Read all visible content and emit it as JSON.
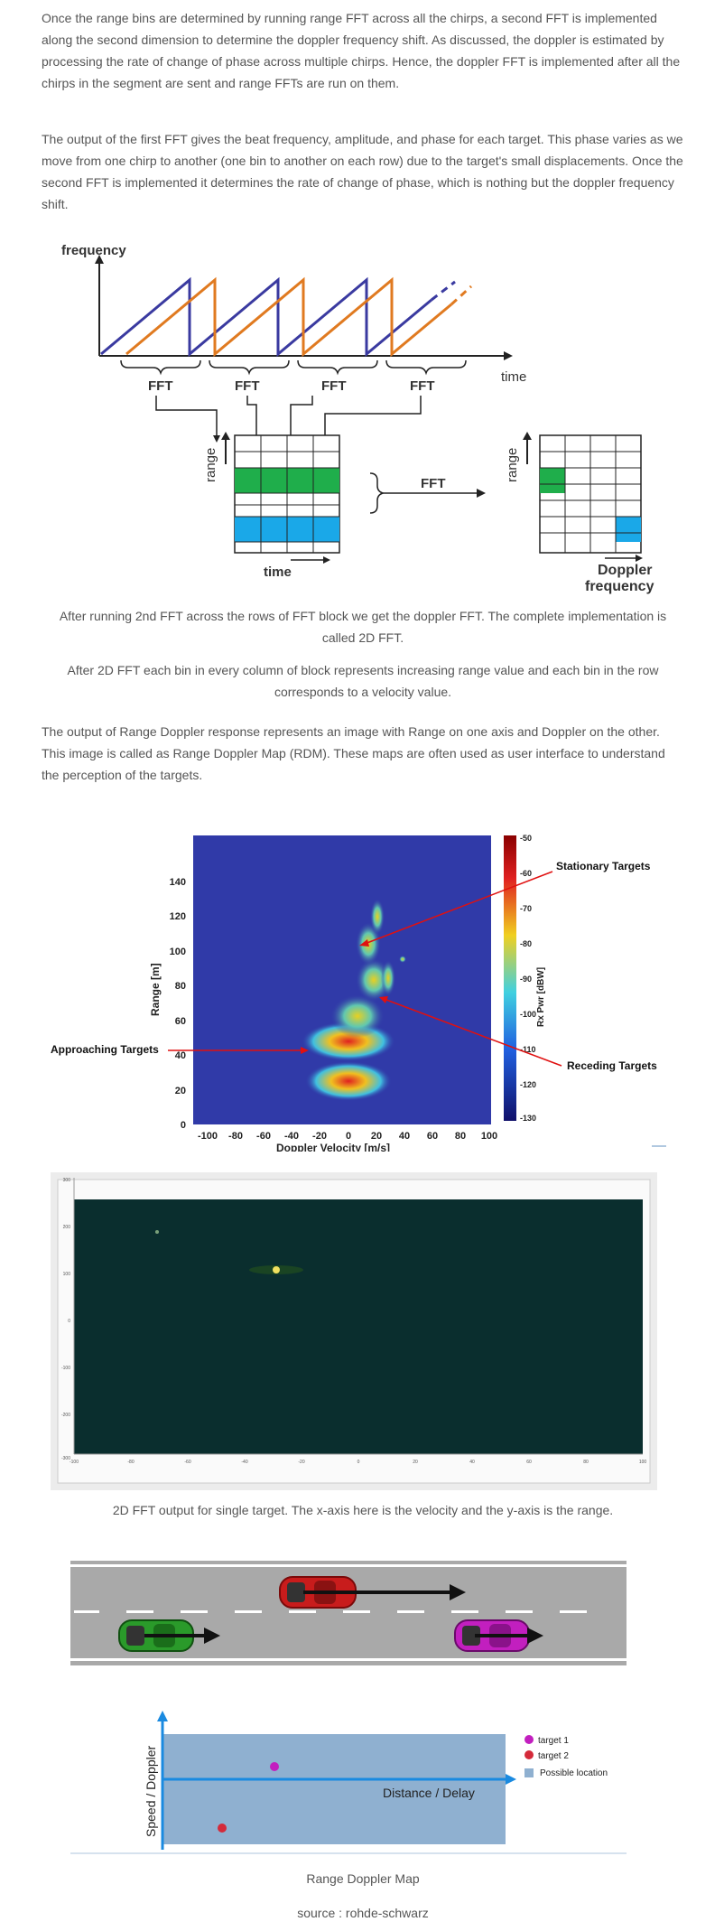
{
  "paragraphs": {
    "p1": "Once the range bins are determined by running range FFT across all the chirps, a second FFT is implemented along the second dimension to determine the doppler frequency shift. As discussed, the doppler is estimated by processing the rate of change of phase across multiple chirps. Hence, the doppler FFT is implemented after all the chirps in the segment are sent and range FFTs are run on them.",
    "p2": "The output of the first FFT gives the beat frequency, amplitude, and phase for each target. This phase varies as we move from one chirp to another (one bin to another on each row) due to the target's small displacements. Once the second FFT is implemented it determines the rate of change of phase, which is nothing but the doppler frequency shift.",
    "p3": "The output of Range Doppler response represents an image with Range on one axis and Doppler on the other. This image is called as Range Doppler Map (RDM). These maps are often used as user interface to understand the perception of the targets."
  },
  "captions": {
    "c1": "After running 2nd FFT across the rows of FFT block we get the doppler FFT. The complete implementation is called 2D FFT.",
    "c2": "After 2D FFT each bin in every column of block represents increasing range value and each bin in the row corresponds to a velocity value.",
    "c3": "2D FFT output for single target. The x-axis here is the velocity and the y-axis is the range.",
    "c4": "Range Doppler Map",
    "c5": "source : rohde-schwarz"
  },
  "fft_diagram": {
    "y_axis": "frequency",
    "x_axis": "time",
    "fft_labels": [
      "FFT",
      "FFT",
      "FFT",
      "FFT"
    ],
    "block_range_label": "range",
    "block_time_label": "time",
    "middle_fft": "FFT",
    "right_range_label": "range",
    "right_axis_label": [
      "Doppler",
      "frequency"
    ],
    "colors": {
      "chirp1": "#3a3aa0",
      "chirp2": "#e07a20",
      "green": "#1fae4b",
      "blue": "#1aa8e8"
    }
  },
  "rdm_chart": {
    "y_label": "Range [m]",
    "x_label": "Doppler Velocity [m/s]",
    "y_ticks": [
      "0",
      "20",
      "40",
      "60",
      "80",
      "100",
      "120",
      "140"
    ],
    "x_ticks": [
      "-100",
      "-80",
      "-60",
      "-40",
      "-20",
      "0",
      "20",
      "40",
      "60",
      "80",
      "100"
    ],
    "colorbar_label": "Rx Pwr [dBW]",
    "colorbar_ticks": [
      "-50",
      "-60",
      "-70",
      "-80",
      "-90",
      "-100",
      "-110",
      "-120",
      "-130"
    ],
    "annotations": {
      "stationary": "Stationary Targets",
      "approaching": "Approaching Targets",
      "receding": "Receding Targets"
    }
  },
  "fft2d_plot": {
    "y_ticks": [
      "300",
      "200",
      "100",
      "0",
      "-100",
      "-200",
      "-300"
    ],
    "x_ticks": [
      "-100",
      "-80",
      "-60",
      "-40",
      "-20",
      "0",
      "20",
      "40",
      "60",
      "80",
      "100"
    ]
  },
  "road_diagram": {
    "y_label": "Speed / Doppler",
    "x_label": "Distance / Delay",
    "legend": [
      "target 1",
      "target 2",
      "Possible location"
    ],
    "colors": {
      "target1": "#c21fbf",
      "target2": "#d42a3a",
      "possible": "#8fb0d0"
    }
  }
}
